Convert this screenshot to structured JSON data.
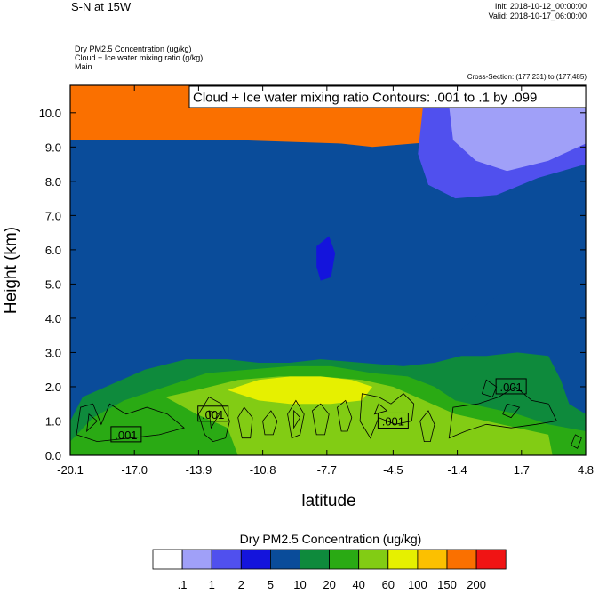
{
  "header": {
    "title": "S-N at 15W",
    "init": "Init: 2018-10-12_00:00:00",
    "valid": "Valid: 2018-10-17_06:00:00",
    "field1": "Dry PM2.5 Concentration   (ug/kg)",
    "field2": "Cloud + Ice water mixing ratio   (g/kg)",
    "field3": "Main",
    "cross_section": "Cross-Section: (177,231) to (177,485)"
  },
  "chart_data": {
    "type": "heatmap",
    "title": "",
    "overlay_title": "Cloud + Ice water mixing ratio Contours: .001 to .1 by .099",
    "xlabel": "latitude",
    "ylabel": "Height (km)",
    "xlim": [
      -20.1,
      4.8
    ],
    "ylim": [
      0,
      10.8
    ],
    "x_ticks": [
      -20.1,
      -17.0,
      -13.9,
      -10.8,
      -7.7,
      -4.5,
      -1.4,
      1.7,
      4.8
    ],
    "x_tick_labels": [
      "-20.1",
      "-17.0",
      "-13.9",
      "-10.8",
      "-7.7",
      "-4.5",
      "-1.4",
      "1.7",
      "4.8"
    ],
    "y_ticks": [
      0,
      1,
      2,
      3,
      4,
      5,
      6,
      7,
      8,
      9,
      10
    ],
    "y_tick_labels": [
      "0.0",
      "1.0",
      "2.0",
      "3.0",
      "4.0",
      "5.0",
      "6.0",
      "7.0",
      "8.0",
      "9.0",
      "10.0"
    ],
    "colorbar": {
      "title": "Dry PM2.5 Concentration  (ug/kg)",
      "labels": [
        ".1",
        "1",
        "2",
        "5",
        "10",
        "20",
        "40",
        "60",
        "100",
        "150",
        "200"
      ],
      "colors": [
        "#ffffff",
        "#a0a0f8",
        "#5050ee",
        "#1414dc",
        "#0a4c9a",
        "#0e8a3c",
        "#2aaa14",
        "#82cc14",
        "#e6f000",
        "#fcc000",
        "#fa7000",
        "#f01414"
      ]
    },
    "contour_labels": [
      {
        "text": ".001",
        "x": -17.4,
        "y": 0.6
      },
      {
        "text": ".001",
        "x": -13.2,
        "y": 1.2
      },
      {
        "text": ".001",
        "x": -4.5,
        "y": 1.0
      },
      {
        "text": ".001",
        "x": 1.2,
        "y": 2.0
      }
    ],
    "regions": [
      {
        "level": 10,
        "poly": [
          [
            -20.1,
            10.8
          ],
          [
            4.8,
            10.8
          ],
          [
            4.8,
            8.6
          ],
          [
            2.5,
            8.9
          ],
          [
            -1.5,
            9.2
          ],
          [
            -5.5,
            9.0
          ],
          [
            -7.0,
            9.1
          ],
          [
            -12.0,
            9.2
          ],
          [
            -16.0,
            9.2
          ],
          [
            -20.1,
            9.2
          ]
        ]
      },
      {
        "level": 2,
        "poly": [
          [
            -3.0,
            10.5
          ],
          [
            -1.0,
            10.6
          ],
          [
            2.0,
            10.6
          ],
          [
            4.8,
            10.5
          ],
          [
            4.8,
            8.5
          ],
          [
            2.5,
            8.1
          ],
          [
            0.5,
            7.6
          ],
          [
            -1.5,
            7.5
          ],
          [
            -2.8,
            7.9
          ],
          [
            -3.3,
            8.8
          ]
        ]
      },
      {
        "level": 1,
        "poly": [
          [
            -1.8,
            10.2
          ],
          [
            0.8,
            10.6
          ],
          [
            4.8,
            10.6
          ],
          [
            4.8,
            9.1
          ],
          [
            3.0,
            8.6
          ],
          [
            1.0,
            8.3
          ],
          [
            -0.5,
            8.6
          ],
          [
            -1.6,
            9.2
          ]
        ]
      },
      {
        "level": 3,
        "poly": [
          [
            -8.2,
            6.1
          ],
          [
            -7.6,
            6.4
          ],
          [
            -7.3,
            5.9
          ],
          [
            -7.5,
            5.2
          ],
          [
            -8.0,
            5.1
          ],
          [
            -8.2,
            5.5
          ]
        ]
      },
      {
        "level": 4,
        "poly": [
          [
            -20.1,
            3.0
          ],
          [
            -18.0,
            3.3
          ],
          [
            -15.0,
            3.2
          ],
          [
            -12.0,
            3.1
          ],
          [
            -9.0,
            3.0
          ],
          [
            -7.0,
            3.2
          ],
          [
            -4.0,
            3.3
          ],
          [
            -1.5,
            3.5
          ],
          [
            -0.6,
            4.0
          ],
          [
            0.0,
            4.4
          ],
          [
            0.6,
            4.7
          ],
          [
            1.2,
            4.6
          ],
          [
            2.2,
            4.5
          ],
          [
            2.8,
            4.7
          ],
          [
            4.8,
            4.7
          ],
          [
            4.8,
            0
          ],
          [
            -20.1,
            0
          ]
        ]
      },
      {
        "level": 5,
        "poly": [
          [
            -20.1,
            1.0
          ],
          [
            -19.5,
            1.7
          ],
          [
            -18.0,
            2.1
          ],
          [
            -16.5,
            2.5
          ],
          [
            -14.5,
            2.8
          ],
          [
            -12.5,
            2.8
          ],
          [
            -11.0,
            2.7
          ],
          [
            -9.5,
            2.7
          ],
          [
            -8.0,
            2.8
          ],
          [
            -6.0,
            2.7
          ],
          [
            -4.0,
            2.6
          ],
          [
            -2.5,
            2.7
          ],
          [
            -1.2,
            2.9
          ],
          [
            0.0,
            2.9
          ],
          [
            1.5,
            3.0
          ],
          [
            3.0,
            2.9
          ],
          [
            3.6,
            2.2
          ],
          [
            4.0,
            1.5
          ],
          [
            4.8,
            1.2
          ],
          [
            4.8,
            0
          ],
          [
            -20.1,
            0
          ]
        ]
      },
      {
        "level": 6,
        "poly": [
          [
            -20.1,
            0.4
          ],
          [
            -19.0,
            1.1
          ],
          [
            -17.5,
            1.6
          ],
          [
            -15.5,
            2.0
          ],
          [
            -13.5,
            2.4
          ],
          [
            -11.5,
            2.5
          ],
          [
            -9.5,
            2.6
          ],
          [
            -7.5,
            2.6
          ],
          [
            -5.5,
            2.4
          ],
          [
            -3.8,
            2.3
          ],
          [
            -2.5,
            2.0
          ],
          [
            -1.5,
            1.6
          ],
          [
            0.0,
            1.4
          ],
          [
            1.5,
            1.2
          ],
          [
            3.0,
            0.9
          ],
          [
            4.8,
            0.7
          ],
          [
            4.8,
            0
          ],
          [
            -20.1,
            0
          ]
        ]
      },
      {
        "level": 7,
        "poly": [
          [
            -15.5,
            1.7
          ],
          [
            -14.0,
            1.9
          ],
          [
            -12.0,
            2.2
          ],
          [
            -10.0,
            2.3
          ],
          [
            -8.0,
            2.3
          ],
          [
            -6.0,
            2.2
          ],
          [
            -4.5,
            2.0
          ],
          [
            -3.0,
            1.6
          ],
          [
            -1.5,
            1.2
          ],
          [
            0.0,
            1.0
          ],
          [
            1.5,
            0.8
          ],
          [
            3.0,
            0.6
          ],
          [
            3.2,
            0
          ],
          [
            -12.0,
            0
          ],
          [
            -12.5,
            0.8
          ],
          [
            -14.0,
            1.2
          ]
        ]
      },
      {
        "level": 8,
        "poly": [
          [
            -12.5,
            1.9
          ],
          [
            -11.0,
            2.2
          ],
          [
            -9.5,
            2.3
          ],
          [
            -8.0,
            2.3
          ],
          [
            -6.5,
            2.2
          ],
          [
            -5.5,
            2.0
          ],
          [
            -6.0,
            1.6
          ],
          [
            -7.5,
            1.5
          ],
          [
            -9.5,
            1.5
          ],
          [
            -11.0,
            1.6
          ]
        ]
      }
    ],
    "contours": [
      [
        [
          -19.8,
          0.6
        ],
        [
          -19.6,
          1.4
        ],
        [
          -19.0,
          1.5
        ],
        [
          -18.6,
          0.9
        ],
        [
          -18.2,
          1.5
        ],
        [
          -17.4,
          1.2
        ],
        [
          -16.4,
          1.4
        ],
        [
          -15.4,
          1.2
        ],
        [
          -14.6,
          0.8
        ],
        [
          -15.8,
          0.6
        ],
        [
          -17.2,
          0.5
        ],
        [
          -18.8,
          0.4
        ],
        [
          -19.8,
          0.6
        ]
      ],
      [
        [
          -13.6,
          0.6
        ],
        [
          -13.9,
          1.2
        ],
        [
          -13.4,
          1.7
        ],
        [
          -12.8,
          1.5
        ],
        [
          -12.4,
          1.0
        ],
        [
          -12.6,
          0.5
        ],
        [
          -13.2,
          0.4
        ],
        [
          -13.6,
          0.6
        ]
      ],
      [
        [
          -11.8,
          0.5
        ],
        [
          -12.0,
          1.1
        ],
        [
          -11.7,
          1.4
        ],
        [
          -11.3,
          1.1
        ],
        [
          -11.4,
          0.5
        ],
        [
          -11.8,
          0.5
        ]
      ],
      [
        [
          -10.7,
          0.6
        ],
        [
          -10.8,
          1.0
        ],
        [
          -10.4,
          1.3
        ],
        [
          -10.1,
          1.0
        ],
        [
          -10.3,
          0.6
        ],
        [
          -10.7,
          0.6
        ]
      ],
      [
        [
          -9.4,
          0.5
        ],
        [
          -9.6,
          1.2
        ],
        [
          -9.2,
          1.6
        ],
        [
          -8.8,
          1.2
        ],
        [
          -9.0,
          0.6
        ],
        [
          -9.4,
          0.5
        ]
      ],
      [
        [
          -8.2,
          0.6
        ],
        [
          -8.4,
          1.3
        ],
        [
          -8.0,
          1.5
        ],
        [
          -7.6,
          1.2
        ],
        [
          -7.8,
          0.6
        ],
        [
          -8.2,
          0.6
        ]
      ],
      [
        [
          -7.0,
          0.7
        ],
        [
          -7.2,
          1.4
        ],
        [
          -6.8,
          1.6
        ],
        [
          -6.5,
          1.1
        ],
        [
          -6.7,
          0.7
        ],
        [
          -7.0,
          0.7
        ]
      ],
      [
        [
          -6.1,
          1.0
        ],
        [
          -6.0,
          1.8
        ],
        [
          -5.2,
          1.7
        ],
        [
          -4.6,
          1.5
        ],
        [
          -4.0,
          1.8
        ],
        [
          -3.5,
          1.5
        ],
        [
          -3.6,
          1.0
        ],
        [
          -4.4,
          0.9
        ],
        [
          -5.2,
          1.1
        ],
        [
          -5.6,
          0.5
        ],
        [
          -6.1,
          1.0
        ]
      ],
      [
        [
          -3.0,
          0.4
        ],
        [
          -3.2,
          1.0
        ],
        [
          -2.8,
          1.3
        ],
        [
          -2.5,
          0.9
        ],
        [
          -2.7,
          0.4
        ],
        [
          -3.0,
          0.4
        ]
      ],
      [
        [
          -1.8,
          0.5
        ],
        [
          -1.6,
          1.4
        ],
        [
          -0.4,
          1.5
        ],
        [
          0.6,
          1.7
        ],
        [
          1.4,
          2.0
        ],
        [
          2.2,
          1.6
        ],
        [
          3.0,
          1.5
        ],
        [
          3.4,
          1.0
        ],
        [
          2.4,
          0.9
        ],
        [
          1.2,
          0.8
        ],
        [
          0.0,
          0.9
        ],
        [
          -1.0,
          0.7
        ],
        [
          -1.8,
          0.5
        ]
      ],
      [
        [
          -0.2,
          1.8
        ],
        [
          0.0,
          2.2
        ],
        [
          0.5,
          2.0
        ],
        [
          0.3,
          1.7
        ],
        [
          -0.2,
          1.8
        ]
      ],
      [
        [
          4.1,
          0.3
        ],
        [
          4.3,
          0.6
        ],
        [
          4.6,
          0.5
        ],
        [
          4.4,
          0.2
        ],
        [
          4.1,
          0.3
        ]
      ],
      [
        [
          -19.3,
          0.7
        ],
        [
          -19.2,
          1.2
        ],
        [
          -18.8,
          1.0
        ],
        [
          -19.3,
          0.7
        ]
      ],
      [
        [
          -13.3,
          0.8
        ],
        [
          -13.4,
          1.3
        ],
        [
          -12.9,
          1.2
        ],
        [
          -13.3,
          0.8
        ]
      ],
      [
        [
          -9.3,
          0.8
        ],
        [
          -9.3,
          1.3
        ],
        [
          -9.0,
          1.1
        ],
        [
          -9.3,
          0.8
        ]
      ],
      [
        [
          -5.4,
          1.2
        ],
        [
          -5.2,
          1.5
        ],
        [
          -4.8,
          1.3
        ],
        [
          -5.4,
          1.2
        ]
      ],
      [
        [
          0.8,
          1.2
        ],
        [
          1.0,
          1.5
        ],
        [
          1.6,
          1.4
        ],
        [
          1.2,
          1.1
        ],
        [
          0.8,
          1.2
        ]
      ]
    ]
  }
}
